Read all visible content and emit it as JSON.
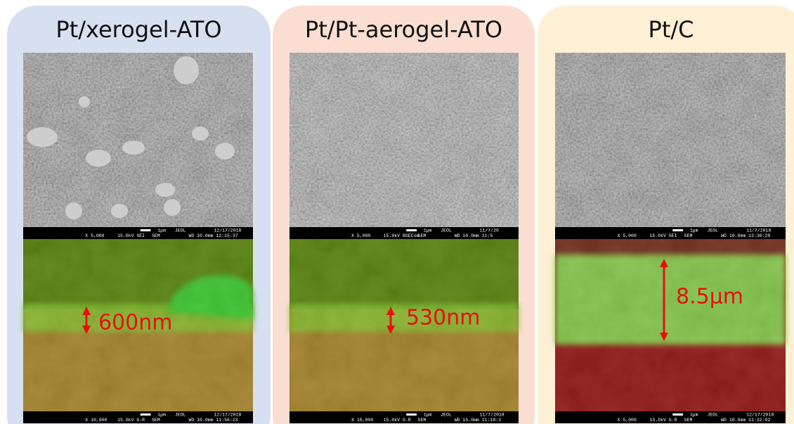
{
  "panels": [
    {
      "title": "Pt/xerogel-ATO",
      "top_bar": {
        "magnification": "X 5,000",
        "voltage": "15.0kV SEI",
        "detector": "SEM",
        "scale": "1μm",
        "brand": "JEOL",
        "date": "12/17/2018",
        "wd_time": "WD 10.0mm 12:15:37"
      },
      "bottom_bar": {
        "magnification": "X 10,000",
        "voltage": "15.0kV G-R",
        "detector": "SEM",
        "scale": "1μm",
        "brand": "JEOL",
        "date": "12/17/2018",
        "wd_time": "WD 10.0mm 11:56:23"
      },
      "annotation": "600nm"
    },
    {
      "title": "Pt/Pt-aerogel-ATO",
      "top_bar": {
        "magnification": "X 5,000",
        "voltage": "15.0kV BSECom",
        "detector": "SEM",
        "scale": "1μm",
        "brand": "JEOL",
        "date": "11/7/20",
        "wd_time": "WD 10.0mm 11:5"
      },
      "bottom_bar": {
        "magnification": "X 10,000",
        "voltage": "15.0kV G-R",
        "detector": "SEM",
        "scale": "1μm",
        "brand": "JEOL",
        "date": "11/7/2018",
        "wd_time": "WD 15.0mm 11:18:3"
      },
      "annotation": "530nm"
    },
    {
      "title": "Pt/C",
      "top_bar": {
        "magnification": "X 5,000",
        "voltage": "15.0kV SEI",
        "detector": "SEM",
        "scale": "1μm",
        "brand": "JEOL",
        "date": "11/7/2018",
        "wd_time": "WD 10.0mm 12:36:29"
      },
      "bottom_bar": {
        "magnification": "X 5,000",
        "voltage": "15.0kV G-R",
        "detector": "SEM",
        "scale": "1μm",
        "brand": "JEOL",
        "date": "12/17/2018",
        "wd_time": "WD 10.0mm 11:32:02"
      },
      "annotation": "8.5μm"
    }
  ]
}
